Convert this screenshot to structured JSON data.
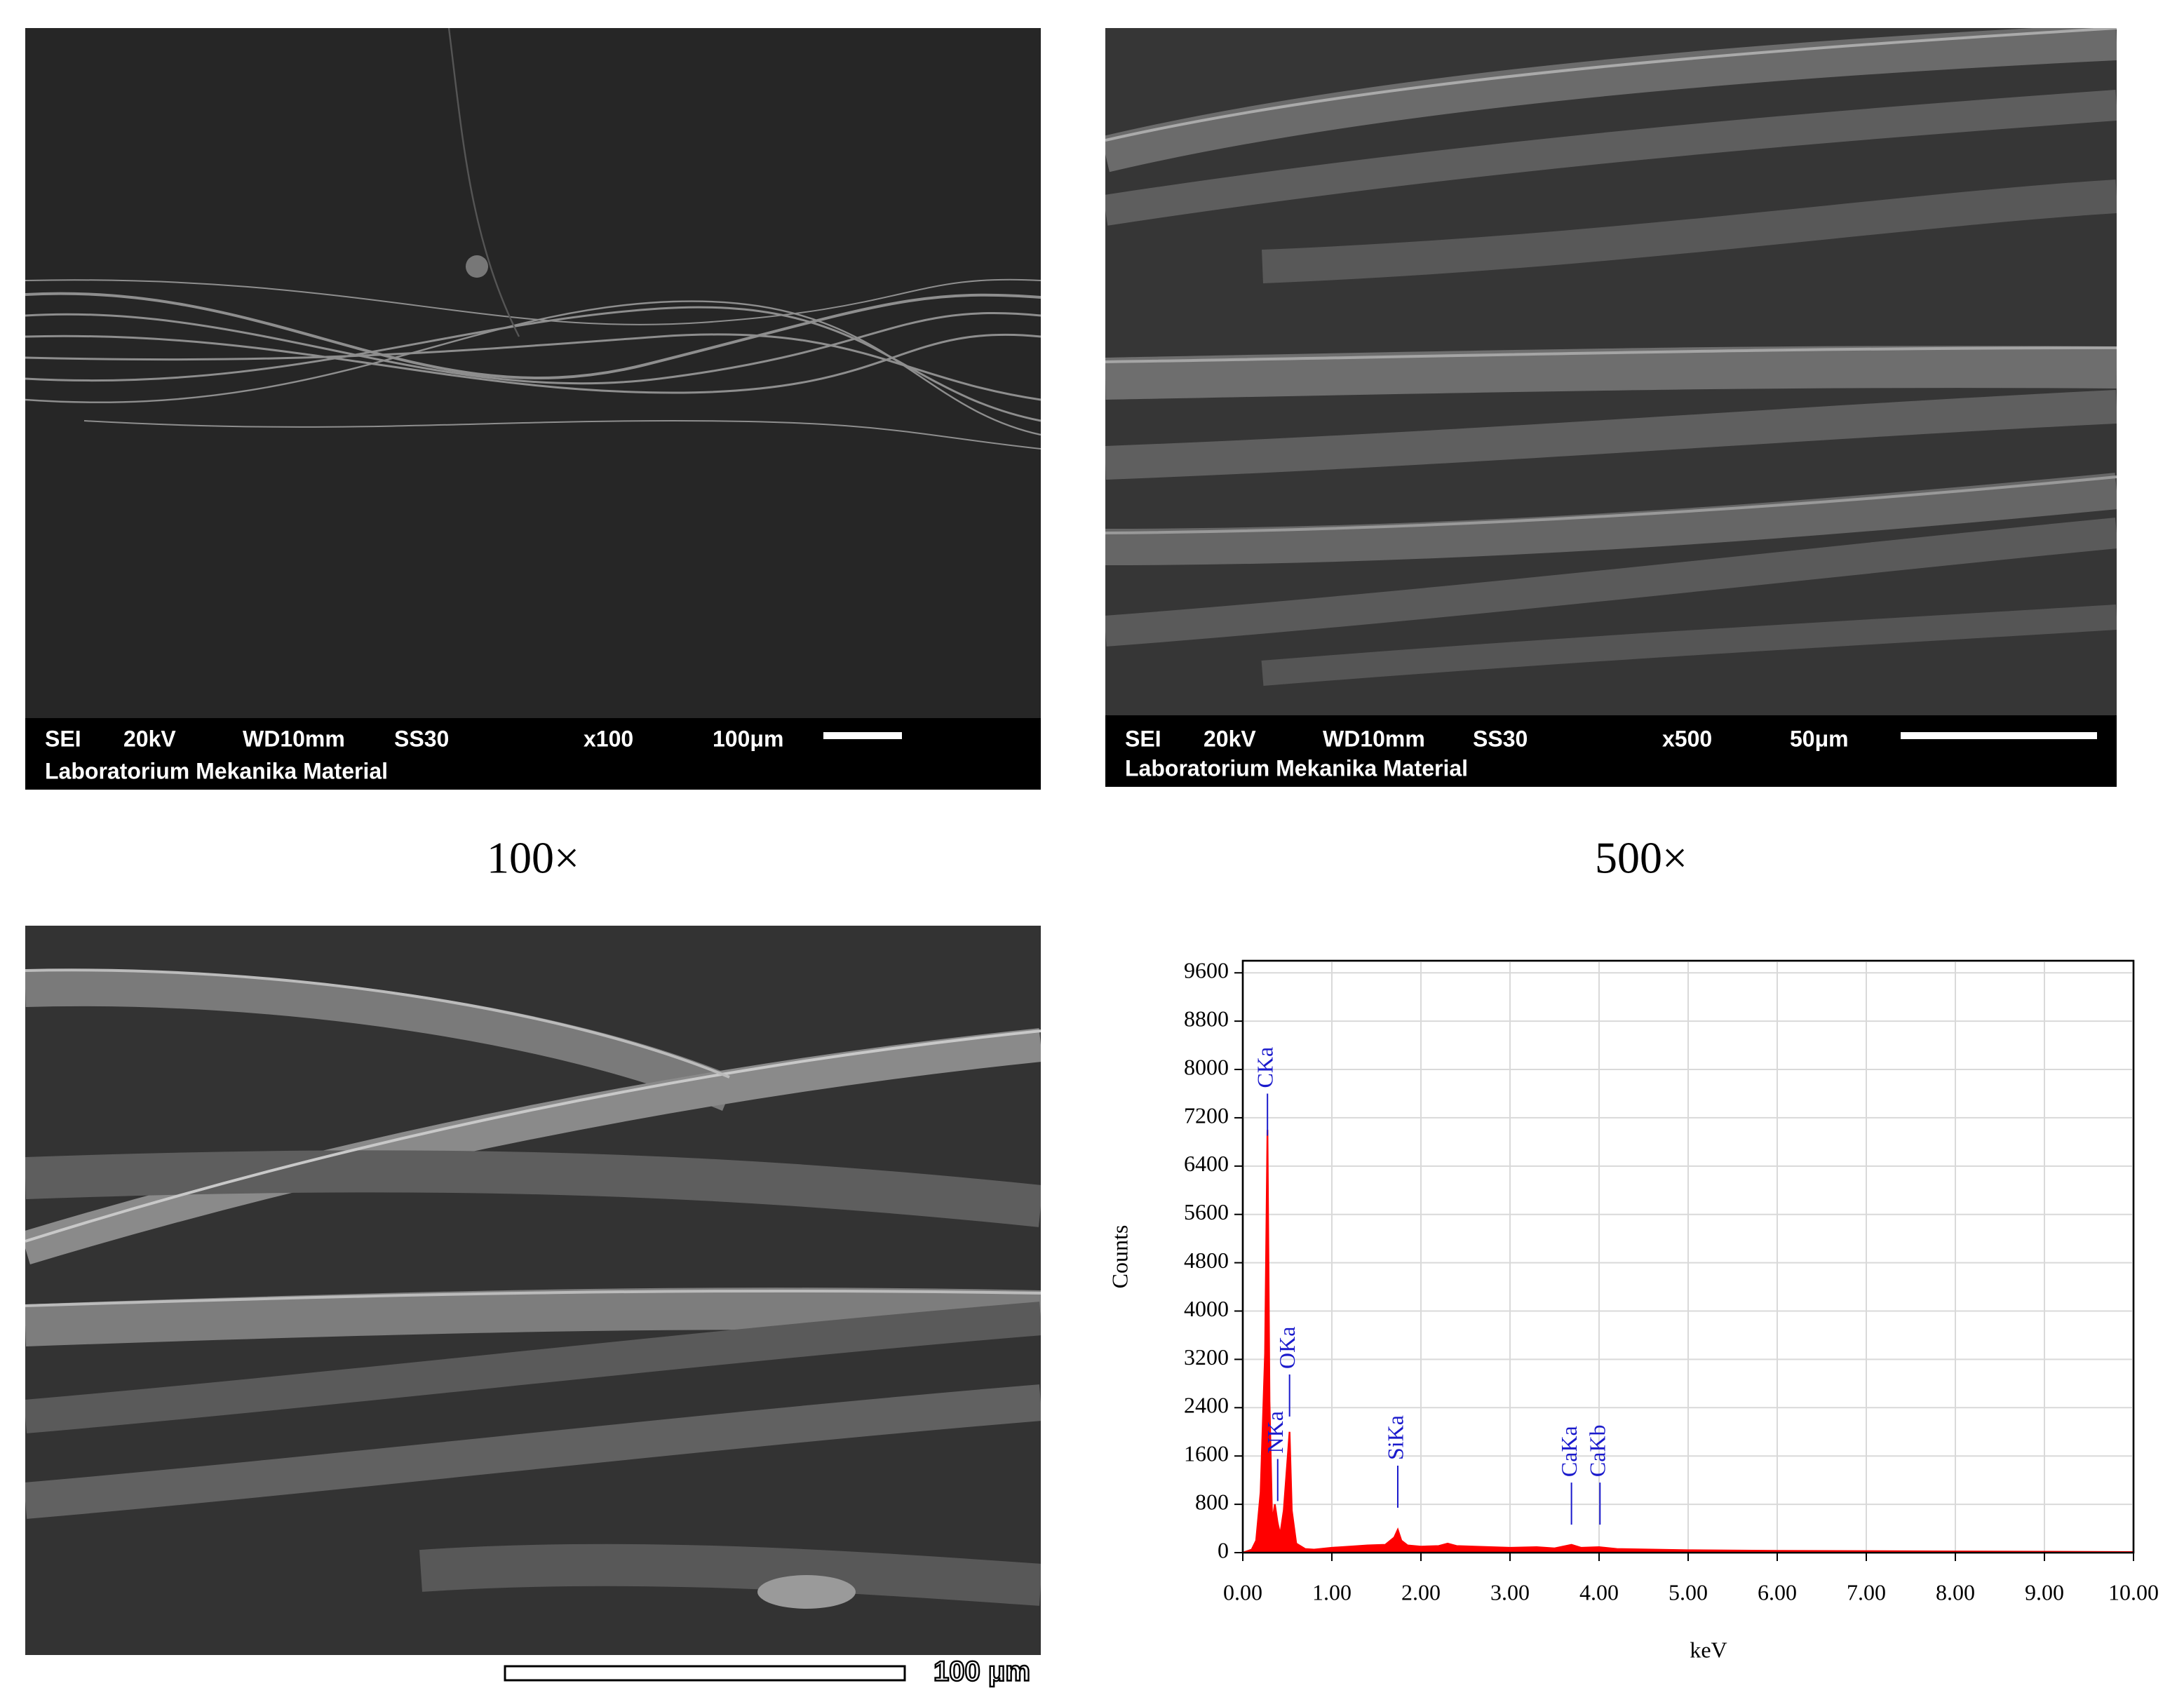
{
  "panels": [
    {
      "info": [
        "SEI",
        "20kV",
        "WD10mm",
        "SS30",
        "x100",
        "100μm"
      ],
      "lab": "Laboratorium Mekanika Material",
      "caption": "100×"
    },
    {
      "info": [
        "SEI",
        "20kV",
        "WD10mm",
        "SS30",
        "x500",
        "50μm"
      ],
      "lab": "Laboratorium Mekanika Material",
      "caption": "500×"
    },
    {
      "scale_label": "100 μm"
    }
  ],
  "chart_data": {
    "type": "line",
    "xlabel": "keV",
    "ylabel": "Counts",
    "color": "#ff0000",
    "grid": true,
    "x": [
      0,
      0.1,
      0.15,
      0.2,
      0.25,
      0.277,
      0.3,
      0.33,
      0.36,
      0.39,
      0.42,
      0.46,
      0.5,
      0.525,
      0.55,
      0.6,
      0.7,
      0.8,
      1.0,
      1.2,
      1.4,
      1.6,
      1.7,
      1.74,
      1.78,
      1.85,
      2.0,
      2.2,
      2.3,
      2.4,
      2.6,
      3.0,
      3.3,
      3.5,
      3.69,
      3.8,
      4.0,
      4.2,
      5.0,
      6.0,
      7.0,
      8.0,
      9.0,
      10.0
    ],
    "values": [
      0,
      50,
      200,
      1000,
      3300,
      7000,
      2500,
      500,
      800,
      500,
      300,
      700,
      1500,
      2000,
      700,
      150,
      60,
      50,
      80,
      100,
      120,
      130,
      250,
      380,
      200,
      120,
      100,
      110,
      150,
      110,
      100,
      80,
      90,
      70,
      130,
      80,
      90,
      60,
      40,
      30,
      25,
      20,
      15,
      10
    ],
    "xlim": [
      0,
      10
    ],
    "ylim": [
      0,
      9800
    ],
    "xticks": [
      {
        "value": 0,
        "label": "0.00"
      },
      {
        "value": 1,
        "label": "1.00"
      },
      {
        "value": 2,
        "label": "2.00"
      },
      {
        "value": 3,
        "label": "3.00"
      },
      {
        "value": 4,
        "label": "4.00"
      },
      {
        "value": 5,
        "label": "5.00"
      },
      {
        "value": 6,
        "label": "6.00"
      },
      {
        "value": 7,
        "label": "7.00"
      },
      {
        "value": 8,
        "label": "8.00"
      },
      {
        "value": 9,
        "label": "9.00"
      },
      {
        "value": 10,
        "label": "10.00"
      }
    ],
    "yticks": [
      0,
      800,
      1600,
      2400,
      3200,
      4000,
      4800,
      5600,
      6400,
      7200,
      8000,
      8800,
      9600
    ],
    "annotation_color": "#1a1acc",
    "annotations": [
      {
        "text": "CKa",
        "x": 0.277,
        "y": 7600
      },
      {
        "text": "NKa",
        "x": 0.392,
        "y": 1550
      },
      {
        "text": "OKa",
        "x": 0.525,
        "y": 2950
      },
      {
        "text": "SiKa",
        "x": 1.74,
        "y": 1440
      },
      {
        "text": "CaKa",
        "x": 3.69,
        "y": 1160
      },
      {
        "text": "CaKb",
        "x": 4.01,
        "y": 1160
      }
    ]
  }
}
